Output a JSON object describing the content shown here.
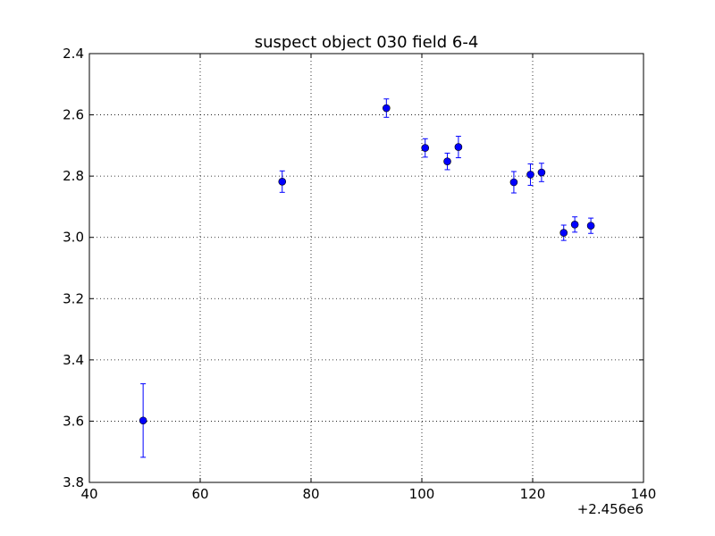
{
  "chart_data": {
    "type": "scatter",
    "title": "suspect object 030 field 6-4",
    "xlabel": "",
    "ylabel": "",
    "x_offset_label": "+2.456e6",
    "xlim": [
      40,
      140
    ],
    "ylim": [
      2.4,
      3.8
    ],
    "y_inverted": true,
    "grid": true,
    "x_ticks": [
      40,
      60,
      80,
      100,
      120,
      140
    ],
    "x_tick_labels": [
      "40",
      "60",
      "80",
      "100",
      "120",
      "140"
    ],
    "y_ticks": [
      2.4,
      2.6,
      2.8,
      3.0,
      3.2,
      3.4,
      3.6,
      3.8
    ],
    "y_tick_labels": [
      "2.4",
      "2.6",
      "2.8",
      "3.0",
      "3.2",
      "3.4",
      "3.6",
      "3.8"
    ],
    "marker_color": "#0000ff",
    "points": [
      {
        "x": 49.7,
        "y": 3.598,
        "err": 0.12
      },
      {
        "x": 74.8,
        "y": 2.818,
        "err": 0.035
      },
      {
        "x": 93.6,
        "y": 2.578,
        "err": 0.03
      },
      {
        "x": 100.6,
        "y": 2.708,
        "err": 0.03
      },
      {
        "x": 104.6,
        "y": 2.752,
        "err": 0.027
      },
      {
        "x": 106.6,
        "y": 2.705,
        "err": 0.035
      },
      {
        "x": 116.6,
        "y": 2.82,
        "err": 0.035
      },
      {
        "x": 119.6,
        "y": 2.795,
        "err": 0.035
      },
      {
        "x": 121.6,
        "y": 2.788,
        "err": 0.03
      },
      {
        "x": 125.6,
        "y": 2.985,
        "err": 0.025
      },
      {
        "x": 127.6,
        "y": 2.958,
        "err": 0.025
      },
      {
        "x": 130.5,
        "y": 2.962,
        "err": 0.025
      }
    ]
  }
}
